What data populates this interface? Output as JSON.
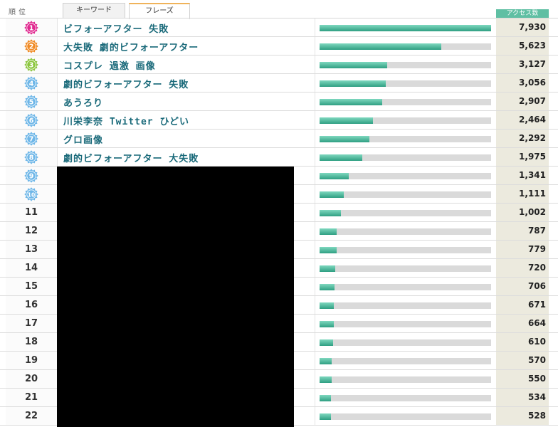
{
  "header": {
    "rank_label": "順位",
    "tabs": [
      {
        "label": "キーワード",
        "active": false
      },
      {
        "label": "フレーズ",
        "active": true
      }
    ],
    "access_label": "アクセス数"
  },
  "colors": {
    "accent": "#5fbfa3",
    "bar_fill": "#2f9f82",
    "bar_track": "#dadada",
    "phrase_text": "#1a6a7a",
    "count_bg": "#eceade",
    "badge_colors": [
      "#e0298f",
      "#f08a24",
      "#8cc63f",
      "#6fb7e8",
      "#6fb7e8",
      "#6fb7e8",
      "#6fb7e8",
      "#6fb7e8",
      "#6fb7e8",
      "#6fb7e8"
    ]
  },
  "rows": [
    {
      "rank": "1",
      "phrase": "ビフォーアフター 失敗",
      "count": "7,930",
      "value": 7930,
      "badge": true
    },
    {
      "rank": "2",
      "phrase": "大失敗 劇的ビフォーアフター",
      "count": "5,623",
      "value": 5623,
      "badge": true
    },
    {
      "rank": "3",
      "phrase": "コスプレ 過激 画像",
      "count": "3,127",
      "value": 3127,
      "badge": true
    },
    {
      "rank": "4",
      "phrase": "劇的ビフォーアフター 失敗",
      "count": "3,056",
      "value": 3056,
      "badge": true
    },
    {
      "rank": "5",
      "phrase": "あうろり",
      "count": "2,907",
      "value": 2907,
      "badge": true
    },
    {
      "rank": "6",
      "phrase": "川栄李奈 Twitter ひどい",
      "count": "2,464",
      "value": 2464,
      "badge": true
    },
    {
      "rank": "7",
      "phrase": "グロ画像",
      "count": "2,292",
      "value": 2292,
      "badge": true
    },
    {
      "rank": "8",
      "phrase": "劇的ビフォーアフター 大失敗",
      "count": "1,975",
      "value": 1975,
      "badge": true
    },
    {
      "rank": "9",
      "phrase": "",
      "count": "1,341",
      "value": 1341,
      "badge": true
    },
    {
      "rank": "10",
      "phrase": "",
      "count": "1,111",
      "value": 1111,
      "badge": true
    },
    {
      "rank": "11",
      "phrase": "",
      "count": "1,002",
      "value": 1002,
      "badge": false
    },
    {
      "rank": "12",
      "phrase": "",
      "count": "787",
      "value": 787,
      "badge": false
    },
    {
      "rank": "13",
      "phrase": "",
      "count": "779",
      "value": 779,
      "badge": false
    },
    {
      "rank": "14",
      "phrase": "",
      "count": "720",
      "value": 720,
      "badge": false
    },
    {
      "rank": "15",
      "phrase": "",
      "count": "706",
      "value": 706,
      "badge": false
    },
    {
      "rank": "16",
      "phrase": "",
      "count": "671",
      "value": 671,
      "badge": false
    },
    {
      "rank": "17",
      "phrase": "",
      "count": "664",
      "value": 664,
      "badge": false
    },
    {
      "rank": "18",
      "phrase": "",
      "count": "610",
      "value": 610,
      "badge": false
    },
    {
      "rank": "19",
      "phrase": "",
      "count": "570",
      "value": 570,
      "badge": false
    },
    {
      "rank": "20",
      "phrase": "",
      "count": "550",
      "value": 550,
      "badge": false
    },
    {
      "rank": "21",
      "phrase": "",
      "count": "534",
      "value": 534,
      "badge": false
    },
    {
      "rank": "22",
      "phrase": "",
      "count": "528",
      "value": 528,
      "badge": false
    }
  ]
}
